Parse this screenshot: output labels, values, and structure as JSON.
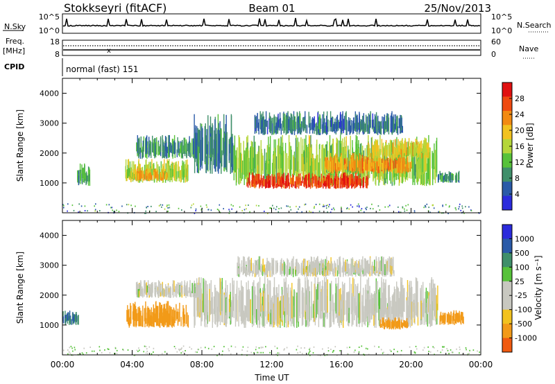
{
  "header": {
    "station": "Stokkseyri (fitACF)",
    "beam": "Beam 01",
    "date": "25/Nov/2013"
  },
  "noise_panel": {
    "left_label": "N.Sky",
    "right_label": "N.Search",
    "left_ticks": [
      "10^5",
      "10^0"
    ],
    "right_ticks": [
      "10^5",
      "10^0"
    ]
  },
  "freq_panel": {
    "left_label": "Freq.",
    "left_unit": "[MHz]",
    "right_label": "Nave",
    "left_ticks": [
      "18",
      "8"
    ],
    "right_ticks": [
      "60",
      "0"
    ]
  },
  "cpid": {
    "label": "CPID",
    "value": "normal (fast) 151"
  },
  "colors": {
    "power": [
      "#2b2bdc",
      "#2a5aa8",
      "#3f8f6a",
      "#57c23a",
      "#b5d63a",
      "#f2c21f",
      "#f28a12",
      "#ef4a10",
      "#e01010"
    ],
    "velocity": [
      "#e01010",
      "#f05a10",
      "#f29a18",
      "#f2c21f",
      "#c8c8c0",
      "#c8c8c0",
      "#57c23a",
      "#3f8f6a",
      "#2a5aa8",
      "#2b2bdc"
    ]
  },
  "chart_data": [
    {
      "type": "heatmap",
      "name": "power",
      "ylabel": "Slant Range [km]",
      "xlim_hours": [
        0,
        24
      ],
      "ylim_km": [
        0,
        4500
      ],
      "y_ticks": [
        "1000",
        "2000",
        "3000",
        "4000"
      ],
      "colorbar": {
        "label": "Power [dB]",
        "ticks": [
          "4",
          "8",
          "12",
          "16",
          "20",
          "24",
          "28"
        ],
        "range": [
          0,
          32
        ]
      },
      "regions": [
        {
          "t0": 0.8,
          "t1": 1.6,
          "r0": 900,
          "r1": 1650,
          "v": 10
        },
        {
          "t0": 3.6,
          "t1": 7.2,
          "r0": 1000,
          "r1": 1800,
          "v": 15
        },
        {
          "t0": 4.0,
          "t1": 6.0,
          "r0": 1050,
          "r1": 1500,
          "v": 21
        },
        {
          "t0": 4.2,
          "t1": 7.8,
          "r0": 1800,
          "r1": 2600,
          "v": 9
        },
        {
          "t0": 7.5,
          "t1": 9.8,
          "r0": 1300,
          "r1": 3300,
          "v": 8
        },
        {
          "t0": 9.8,
          "t1": 21.5,
          "r0": 900,
          "r1": 2600,
          "v": 14
        },
        {
          "t0": 10.5,
          "t1": 17.5,
          "r0": 800,
          "r1": 1350,
          "v": 28
        },
        {
          "t0": 15.0,
          "t1": 20.0,
          "r0": 1300,
          "r1": 2000,
          "v": 22
        },
        {
          "t0": 17.5,
          "t1": 21.0,
          "r0": 1800,
          "r1": 2500,
          "v": 18
        },
        {
          "t0": 11.0,
          "t1": 19.5,
          "r0": 2600,
          "r1": 3400,
          "v": 7
        },
        {
          "t0": 21.5,
          "t1": 22.8,
          "r0": 1000,
          "r1": 1400,
          "v": 9
        }
      ]
    },
    {
      "type": "heatmap",
      "name": "velocity",
      "ylabel": "Slant Range [km]",
      "xlabel": "Time UT",
      "x_ticks": [
        "00:00",
        "04:00",
        "08:00",
        "12:00",
        "16:00",
        "20:00",
        "00:00"
      ],
      "xlim_hours": [
        0,
        24
      ],
      "ylim_km": [
        0,
        4500
      ],
      "y_ticks": [
        "1000",
        "2000",
        "3000",
        "4000"
      ],
      "colorbar": {
        "label": "Velocity [m s⁻¹]",
        "ticks": [
          "1000",
          "500",
          "100",
          "25",
          "-25",
          "-100",
          "-500",
          "-1000"
        ]
      },
      "regions": [
        {
          "t0": 0.0,
          "t1": 0.9,
          "r0": 1000,
          "r1": 1500,
          "v": 500
        },
        {
          "t0": 3.6,
          "t1": 7.2,
          "r0": 900,
          "r1": 1800,
          "v": -200
        },
        {
          "t0": 4.2,
          "t1": 7.8,
          "r0": 1900,
          "r1": 2500,
          "v": 0
        },
        {
          "t0": 7.5,
          "t1": 21.5,
          "r0": 900,
          "r1": 2600,
          "v": 0
        },
        {
          "t0": 10.0,
          "t1": 19.0,
          "r0": 2600,
          "r1": 3300,
          "v": 0
        },
        {
          "t0": 18.2,
          "t1": 19.8,
          "r0": 850,
          "r1": 1250,
          "v": -200
        },
        {
          "t0": 21.6,
          "t1": 23.0,
          "r0": 1000,
          "r1": 1500,
          "v": -300
        }
      ]
    }
  ]
}
